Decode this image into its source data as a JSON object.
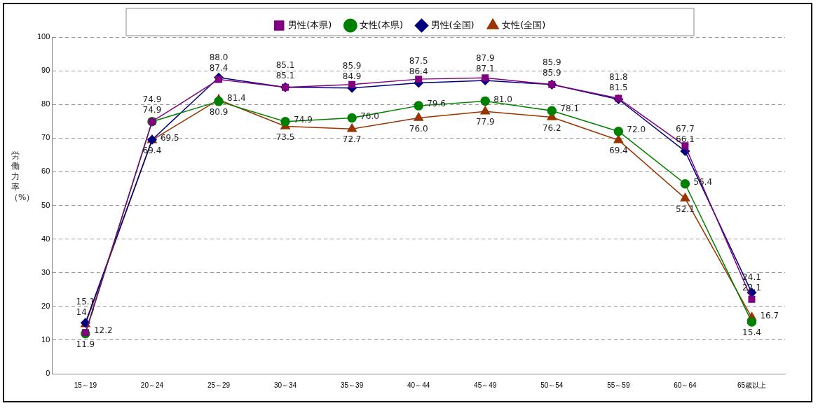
{
  "chart_data": {
    "type": "line",
    "ylabel": "労働力率（%）",
    "categories": [
      "15～19",
      "20～24",
      "25～29",
      "30～34",
      "35～39",
      "40～44",
      "45～49",
      "50～54",
      "55～59",
      "60～64",
      "65歳以上"
    ],
    "series": [
      {
        "name": "男性(本県)",
        "color": "#800080",
        "marker": "square",
        "values": [
          12.2,
          74.9,
          87.4,
          85.1,
          85.9,
          87.5,
          87.9,
          85.9,
          81.8,
          67.7,
          22.1
        ],
        "value_labels": [
          "12.2",
          "74.9",
          "87.4",
          "85.1",
          "85.9",
          "87.5",
          "87.9",
          "85.9",
          "81.8",
          "67.7",
          "22.1"
        ]
      },
      {
        "name": "女性(本県)",
        "color": "#008000",
        "marker": "circle",
        "values": [
          11.9,
          74.9,
          80.9,
          74.9,
          76,
          79.6,
          81,
          78.1,
          72,
          56.4,
          15.4
        ],
        "value_labels": [
          "11.9",
          "74.9",
          "80.9",
          "74.9",
          "76.0",
          "79.6",
          "81.0",
          "78.1",
          "72.0",
          "56.4",
          "15.4"
        ]
      },
      {
        "name": "男性(全国)",
        "color": "#000080",
        "marker": "diamond",
        "values": [
          15.1,
          69.5,
          88,
          85.1,
          84.9,
          86.4,
          87.1,
          85.9,
          81.5,
          66.1,
          24.1
        ],
        "value_labels": [
          "15.1",
          "69.5",
          "88.0",
          "85.1",
          "84.9",
          "86.4",
          "87.1",
          "85.9",
          "81.5",
          "66.1",
          "24.1"
        ]
      },
      {
        "name": "女性(全国)",
        "color": "#993300",
        "marker": "triangle",
        "values": [
          14.7,
          69.4,
          81.4,
          73.5,
          72.7,
          76,
          77.9,
          76.2,
          69.4,
          52.1,
          16.7
        ],
        "value_labels": [
          "14.7",
          "69.4",
          "81.4",
          "73.5",
          "72.7",
          "76.0",
          "77.9",
          "76.2",
          "69.4",
          "52.1",
          "16.7"
        ]
      }
    ],
    "ylim": [
      0,
      100
    ],
    "yticks": [
      0,
      10,
      20,
      30,
      40,
      50,
      60,
      70,
      80,
      90,
      100
    ],
    "grid": "y",
    "legend": "top",
    "line_style": "solid"
  }
}
